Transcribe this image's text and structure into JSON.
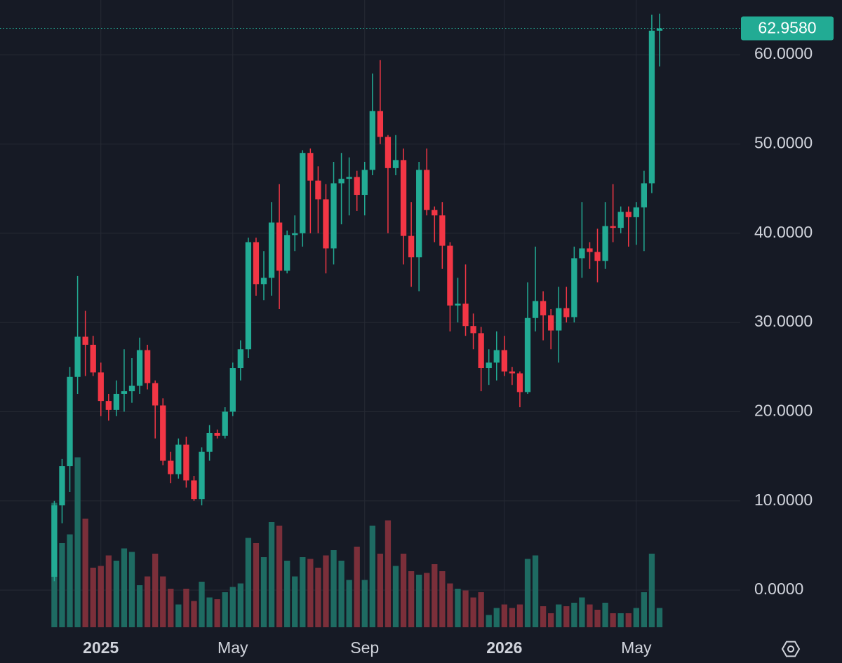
{
  "chart_data": {
    "type": "candlestick",
    "up_color": "#22ab94",
    "down_color": "#f23645",
    "volume_up_color": "#1e6b62",
    "volume_down_color": "#7b2f3a",
    "grid": true,
    "xlim": [
      -7,
      88.4
    ],
    "ylim": [
      -4.16,
      66.14
    ],
    "volume_ylim": [
      0,
      100
    ],
    "yticks": [
      {
        "value": 0,
        "label": "0.0000"
      },
      {
        "value": 10,
        "label": "10.0000"
      },
      {
        "value": 20,
        "label": "20.0000"
      },
      {
        "value": 30,
        "label": "30.0000"
      },
      {
        "value": 40,
        "label": "40.0000"
      },
      {
        "value": 50,
        "label": "50.0000"
      },
      {
        "value": 60,
        "label": "60.0000"
      }
    ],
    "xticks": [
      {
        "value": 6,
        "label": "2025"
      },
      {
        "value": 23,
        "label": "May"
      },
      {
        "value": 40,
        "label": "Sep"
      },
      {
        "value": 58,
        "label": "2026"
      },
      {
        "value": 75,
        "label": "May"
      }
    ],
    "last_price": {
      "value": 62.958,
      "label": "62.9580"
    },
    "open": [
      1.5,
      9.5,
      13.9,
      23.9,
      28.4,
      27.5,
      24.4,
      21.2,
      20.2,
      22,
      22.3,
      22.9,
      26.9,
      23.2,
      20.7,
      14.5,
      13,
      16.3,
      12.3,
      10.2,
      15.5,
      17.6,
      17.3,
      20,
      24.9,
      27,
      39,
      34.3,
      35,
      41.2,
      35.8,
      39.8,
      40,
      49,
      45.9,
      43.8,
      38.3,
      45.6,
      46.1,
      46.3,
      44.3,
      47.1,
      53.7,
      50.8,
      47.3,
      48.2,
      39.7,
      37.3,
      47.1,
      42.6,
      42,
      38.6,
      31.9,
      32.1,
      29.6,
      28.8,
      24.9,
      25.5,
      26.9,
      24.5,
      24.3,
      22.2,
      30.5,
      32.4,
      30.8,
      29.1,
      31.6,
      30.6,
      37.2,
      38.3,
      37.9,
      36.9,
      40.8,
      40.6,
      42.4,
      41.8,
      42.9,
      45.6,
      62.7
    ],
    "high": [
      10,
      14.7,
      25,
      35.2,
      31.3,
      28.5,
      25.5,
      22,
      23.5,
      27,
      26,
      28.3,
      27.5,
      23.5,
      21.5,
      15.5,
      17,
      17.2,
      12.8,
      16,
      18.5,
      18,
      20.5,
      25.5,
      28,
      39.5,
      39.5,
      38,
      43.5,
      45.5,
      40.3,
      42,
      49.3,
      49.5,
      47.5,
      45.5,
      48,
      49,
      48.5,
      47,
      48,
      57.9,
      59.4,
      51,
      51,
      49.5,
      43.5,
      48,
      49.5,
      43,
      43.5,
      39,
      35,
      36.5,
      31,
      29.5,
      27,
      29,
      28.5,
      25,
      24.5,
      34.5,
      38.5,
      33.5,
      31.5,
      34,
      34,
      38.5,
      43.5,
      39,
      40.5,
      43.5,
      45.5,
      43,
      43,
      43.5,
      47,
      64.5,
      64.6
    ],
    "low": [
      1,
      7.5,
      11,
      22,
      24,
      24,
      19.5,
      19,
      19.5,
      20,
      21,
      22,
      22.5,
      17,
      14,
      12,
      12.5,
      11.5,
      10,
      9.5,
      14.5,
      17,
      17,
      19.5,
      23.5,
      26,
      33,
      32.5,
      33,
      31.5,
      35.5,
      38,
      38.5,
      40,
      40,
      35.5,
      36.5,
      41,
      42,
      42.5,
      42,
      46.5,
      50,
      40,
      46.5,
      36.5,
      34,
      33.5,
      42,
      39,
      36,
      29,
      30,
      28.5,
      27,
      22.3,
      23,
      23.5,
      24,
      23,
      20.5,
      22,
      29,
      28,
      27,
      25.5,
      30,
      30,
      35,
      36,
      34.5,
      36,
      39,
      40,
      38.5,
      38.7,
      38,
      44.5,
      58.7
    ],
    "close": [
      9.5,
      13.9,
      23.9,
      28.4,
      27.5,
      24.4,
      21.2,
      20.2,
      22,
      22.3,
      22.9,
      26.9,
      23.2,
      20.7,
      14.5,
      13,
      16.3,
      12.3,
      10.2,
      15.5,
      17.6,
      17.3,
      20,
      24.9,
      27,
      39,
      34.3,
      35,
      41.2,
      35.8,
      39.8,
      40,
      49,
      45.9,
      43.8,
      38.3,
      45.6,
      46.1,
      46.3,
      44.3,
      47.1,
      53.7,
      50.8,
      47.3,
      48.2,
      39.7,
      37.3,
      47.1,
      42.6,
      42,
      38.6,
      31.9,
      32.1,
      29.6,
      28.8,
      24.9,
      25.5,
      26.9,
      24.5,
      24.3,
      22.2,
      30.5,
      32.4,
      30.8,
      29.1,
      31.6,
      30.6,
      37.2,
      38.3,
      37.9,
      36.9,
      40.8,
      40.6,
      42.4,
      41.8,
      42.9,
      45.6,
      62.7,
      62.958
    ],
    "volume": [
      71,
      48,
      53,
      97,
      62,
      34,
      35,
      41,
      38,
      45,
      43,
      24,
      29,
      42,
      29,
      22,
      13,
      22,
      15,
      26,
      17,
      16,
      20,
      23,
      25,
      51,
      48,
      40,
      60,
      58,
      38,
      29,
      40,
      39,
      34,
      41,
      44,
      38,
      27,
      46,
      27,
      58,
      42,
      61,
      35,
      42,
      32,
      30,
      31,
      36,
      32,
      25,
      22,
      21,
      17,
      20,
      7,
      11,
      13,
      11,
      13,
      39,
      41,
      12,
      8,
      13,
      12,
      14,
      17,
      13,
      10,
      14,
      8,
      8,
      8,
      11,
      20,
      42,
      11
    ]
  }
}
